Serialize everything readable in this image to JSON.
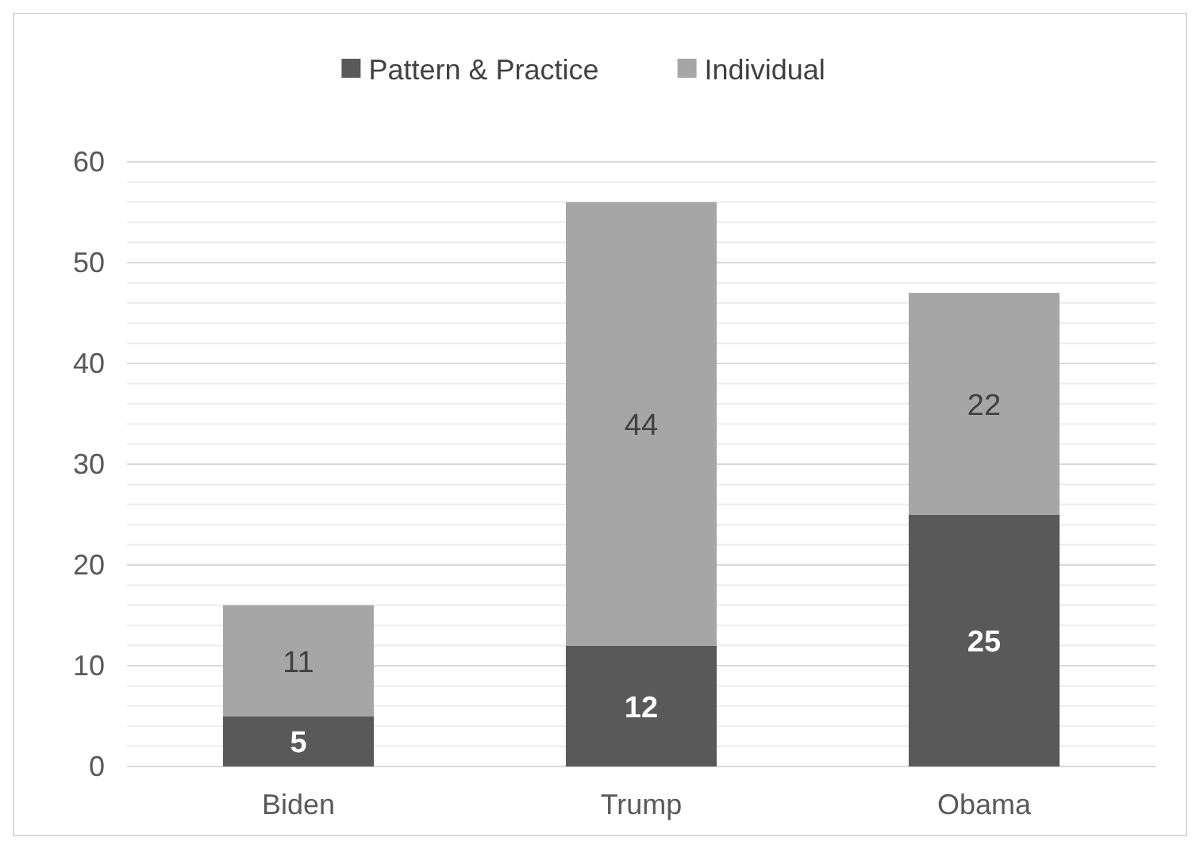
{
  "chart_data": {
    "type": "bar",
    "stacked": true,
    "categories": [
      "Biden",
      "Trump",
      "Obama"
    ],
    "series": [
      {
        "name": "Pattern & Practice",
        "color": "#595959",
        "values": [
          5,
          12,
          25
        ]
      },
      {
        "name": "Individual",
        "color": "#a6a6a6",
        "values": [
          11,
          44,
          22
        ]
      }
    ],
    "ylim": [
      0,
      60
    ],
    "yticks": [
      0,
      {
        "value": 2,
        "label": null
      },
      {
        "value": 4,
        "label": null
      },
      {
        "value": 6,
        "label": null
      },
      {
        "value": 8,
        "label": null
      },
      10,
      {
        "value": 12,
        "label": null
      },
      {
        "value": 14,
        "label": null
      },
      {
        "value": 16,
        "label": null
      },
      {
        "value": 18,
        "label": null
      },
      20,
      {
        "value": 22,
        "label": null
      },
      {
        "value": 24,
        "label": null
      },
      {
        "value": 26,
        "label": null
      },
      {
        "value": 28,
        "label": null
      },
      30,
      {
        "value": 32,
        "label": null
      },
      {
        "value": 34,
        "label": null
      },
      {
        "value": 36,
        "label": null
      },
      {
        "value": 38,
        "label": null
      },
      40,
      {
        "value": 42,
        "label": null
      },
      {
        "value": 44,
        "label": null
      },
      {
        "value": 46,
        "label": null
      },
      {
        "value": 48,
        "label": null
      },
      50,
      {
        "value": 52,
        "label": null
      },
      {
        "value": 54,
        "label": null
      },
      {
        "value": 56,
        "label": null
      },
      {
        "value": 58,
        "label": null
      },
      60
    ],
    "grid": true,
    "legend": "top",
    "data_labels": true
  }
}
